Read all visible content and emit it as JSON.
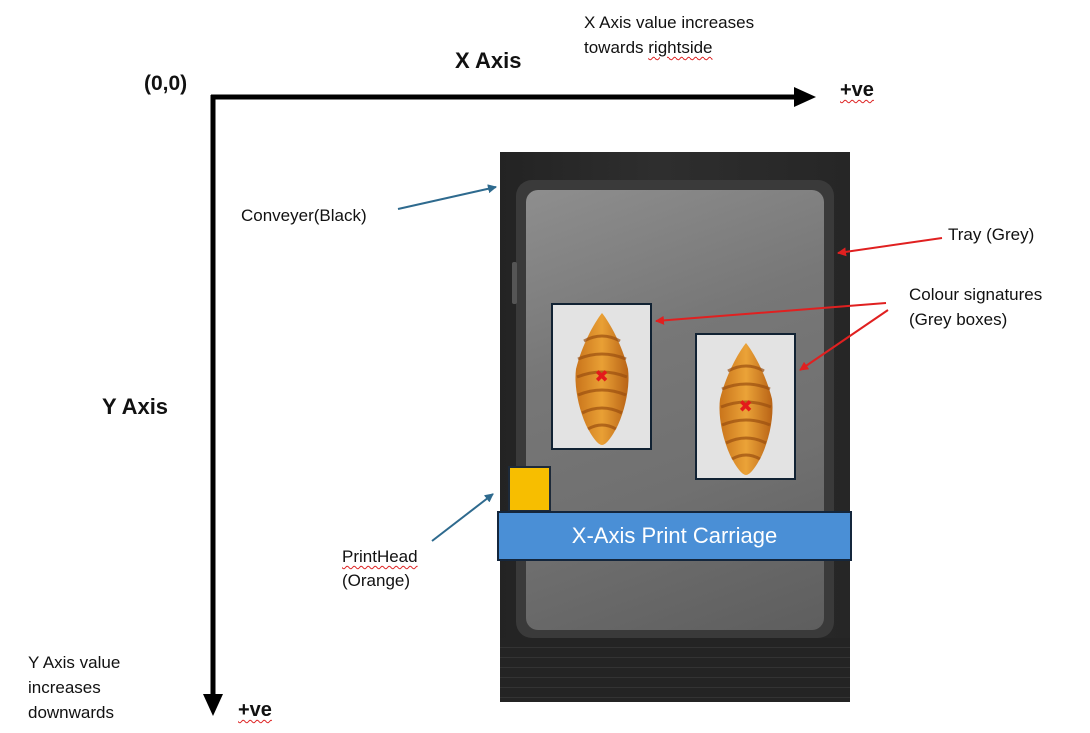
{
  "axes": {
    "origin": "(0,0)",
    "x_title": "X Axis",
    "x_positive": "+ve",
    "x_note_line1": "X Axis value increases",
    "x_note_line2_prefix": "towards ",
    "x_note_line2_word": "rightside",
    "y_title": "Y Axis",
    "y_positive": "+ve",
    "y_note_line1": "Y Axis value",
    "y_note_line2": "increases",
    "y_note_line3": "downwards"
  },
  "labels": {
    "conveyor": "Conveyer(Black)",
    "tray": "Tray (Grey)",
    "signatures_line1": "Colour signatures",
    "signatures_line2": "(Grey boxes)",
    "printhead_line1": "PrintHead",
    "printhead_line2": "(Orange)",
    "carriage": "X-Axis Print Carriage"
  },
  "colors": {
    "axis": "#000000",
    "callout_blue": "#2e6a8e",
    "callout_red": "#e02020",
    "conveyor": "#262626",
    "tray": "#7a7a7a",
    "signature_box": "#e3e3e3",
    "printhead": "#f7be00",
    "carriage": "#4a8fd6",
    "target_mark": "#e31b1b"
  },
  "icons": {
    "target_mark": "x-mark-icon",
    "product": "croissant-icon"
  }
}
